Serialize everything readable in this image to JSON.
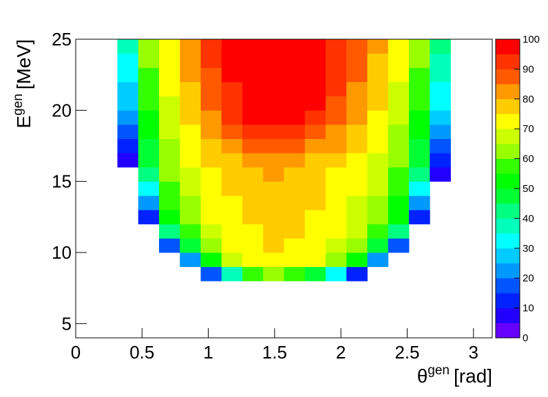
{
  "chart_data": {
    "type": "heatmap",
    "xlabel": {
      "symbol": "θ",
      "sup": "gen",
      "unit": "[rad]"
    },
    "ylabel": {
      "symbol": "E",
      "sup": "gen",
      "unit": "[MeV]"
    },
    "xlim": [
      0,
      3.1416
    ],
    "ylim": [
      4,
      25
    ],
    "zlim": [
      0,
      100
    ],
    "xticks": [
      0,
      0.5,
      1,
      1.5,
      2,
      2.5,
      3
    ],
    "yticks": [
      5,
      10,
      15,
      20,
      25
    ],
    "zticks": [
      0,
      10,
      20,
      30,
      40,
      50,
      60,
      70,
      80,
      90,
      100
    ],
    "palette": [
      "#6600ff",
      "#2200ff",
      "#0022ff",
      "#0055ff",
      "#0099ff",
      "#00ccff",
      "#00ffff",
      "#00ffbb",
      "#00ff80",
      "#00ff33",
      "#00ff00",
      "#33ff00",
      "#99ff00",
      "#ccff00",
      "#ffff00",
      "#ffcc00",
      "#ff9900",
      "#ff5a00",
      "#ff3300",
      "#ff0000"
    ],
    "xbins": [
      0,
      0.1571,
      0.3142,
      0.4712,
      0.6283,
      0.7854,
      0.9425,
      1.0996,
      1.2566,
      1.4137,
      1.5708,
      1.7279,
      1.885,
      2.042,
      2.1991,
      2.3562,
      2.5133,
      2.6704,
      2.8274,
      2.9845,
      3.1416
    ],
    "ybins": [
      4,
      5,
      6,
      7,
      8,
      9,
      10,
      11,
      12,
      13,
      14,
      15,
      16,
      17,
      18,
      19,
      20,
      21,
      22,
      23,
      24,
      25
    ],
    "z": [
      [
        0,
        0,
        0,
        0,
        0,
        0,
        0,
        0,
        0,
        0,
        0,
        0,
        0,
        0,
        0,
        0,
        0,
        0,
        0,
        0
      ],
      [
        0,
        0,
        0,
        0,
        0,
        0,
        0,
        0,
        0,
        0,
        0,
        0,
        0,
        0,
        0,
        0,
        0,
        0,
        0,
        0
      ],
      [
        0,
        0,
        0,
        0,
        0,
        0,
        0,
        0,
        0,
        0,
        0,
        0,
        0,
        0,
        0,
        0,
        0,
        0,
        0,
        0
      ],
      [
        0,
        0,
        0,
        0,
        0,
        0,
        0,
        0,
        0,
        0,
        0,
        0,
        0,
        0,
        0,
        0,
        0,
        0,
        0,
        0
      ],
      [
        0,
        0,
        0,
        0,
        0,
        0,
        15,
        35,
        55,
        60,
        58,
        45,
        30,
        10,
        0,
        0,
        0,
        0,
        0,
        0
      ],
      [
        0,
        0,
        0,
        0,
        0,
        20,
        52,
        66,
        72,
        74,
        73,
        70,
        62,
        52,
        20,
        0,
        0,
        0,
        0,
        0
      ],
      [
        0,
        0,
        0,
        0,
        15,
        48,
        64,
        70,
        73,
        75,
        74,
        72,
        68,
        62,
        48,
        15,
        0,
        0,
        0,
        0
      ],
      [
        0,
        0,
        0,
        0,
        40,
        58,
        68,
        72,
        74,
        76,
        75,
        73,
        70,
        66,
        58,
        40,
        0,
        0,
        0,
        0
      ],
      [
        0,
        0,
        0,
        10,
        50,
        62,
        70,
        73,
        75,
        77,
        76,
        74,
        71,
        68,
        61,
        50,
        10,
        0,
        0,
        0
      ],
      [
        0,
        0,
        0,
        20,
        55,
        64,
        71,
        74,
        76,
        78,
        77,
        75,
        72,
        69,
        63,
        54,
        20,
        0,
        0,
        0
      ],
      [
        0,
        0,
        0,
        30,
        58,
        66,
        72,
        75,
        77,
        79,
        78,
        76,
        73,
        70,
        65,
        56,
        30,
        0,
        0,
        0
      ],
      [
        0,
        0,
        0,
        40,
        60,
        68,
        73,
        76,
        78,
        80,
        79,
        77,
        74,
        71,
        66,
        58,
        40,
        5,
        0,
        0
      ],
      [
        0,
        0,
        5,
        45,
        62,
        70,
        75,
        78,
        80,
        82,
        81,
        79,
        76,
        73,
        68,
        60,
        45,
        10,
        0,
        0
      ],
      [
        0,
        0,
        10,
        48,
        64,
        72,
        77,
        82,
        86,
        88,
        87,
        84,
        80,
        76,
        70,
        62,
        48,
        15,
        0,
        0
      ],
      [
        0,
        0,
        15,
        50,
        66,
        74,
        80,
        86,
        92,
        94,
        93,
        89,
        84,
        78,
        72,
        64,
        50,
        20,
        0,
        0
      ],
      [
        0,
        0,
        20,
        52,
        67,
        75,
        83,
        90,
        95,
        97,
        96,
        93,
        87,
        80,
        74,
        66,
        52,
        25,
        0,
        0
      ],
      [
        0,
        0,
        25,
        55,
        68,
        76,
        85,
        92,
        97,
        99,
        98,
        95,
        89,
        82,
        75,
        67,
        55,
        30,
        0,
        0
      ],
      [
        0,
        0,
        28,
        56,
        70,
        78,
        87,
        94,
        98,
        99,
        99,
        96,
        90,
        84,
        76,
        68,
        56,
        32,
        0,
        0
      ],
      [
        0,
        0,
        30,
        58,
        70,
        80,
        88,
        95,
        99,
        100,
        100,
        97,
        90,
        85,
        76,
        70,
        58,
        35,
        0,
        0
      ],
      [
        0,
        0,
        30,
        60,
        72,
        80,
        90,
        96,
        100,
        100,
        100,
        98,
        92,
        86,
        78,
        70,
        60,
        38,
        0,
        0
      ],
      [
        0,
        0,
        35,
        62,
        72,
        82,
        90,
        97,
        100,
        100,
        100,
        99,
        92,
        88,
        80,
        72,
        62,
        40,
        0,
        0
      ]
    ]
  }
}
